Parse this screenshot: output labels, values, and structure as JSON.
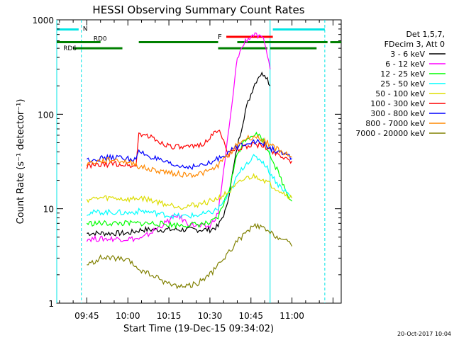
{
  "chart_data": {
    "type": "line",
    "title": "HESSI Observing Summary Count Rates",
    "xlabel": "Start Time (19-Dec-15 09:34:02)",
    "ylabel": "Count Rate (s⁻¹ detector⁻¹)",
    "yscale": "log",
    "xlim": [
      "09:34",
      "11:18"
    ],
    "ylim": [
      1,
      1000
    ],
    "x_ticks": [
      "09:45",
      "10:00",
      "10:15",
      "10:30",
      "10:45",
      "11:00"
    ],
    "y_ticks": [
      "1",
      "10",
      "100",
      "1000"
    ],
    "legend_position": "right",
    "legend_header": [
      "Det 1,5,7,",
      "FDecim 3, Att 0"
    ],
    "footer_date": "20-Oct-2017 10:04",
    "flags": {
      "cyan_label": "N",
      "rd0_label": "RD0",
      "rd6_label": "RD6",
      "flare_label": "F",
      "night_vlines": [
        "09:34",
        "09:43",
        "10:52",
        "11:12"
      ],
      "cyan_segments": [
        [
          "09:34",
          "09:42"
        ],
        [
          "10:53",
          "11:12"
        ]
      ],
      "rd0_segments": [
        [
          "09:34",
          "09:50"
        ],
        [
          "10:04",
          "10:33"
        ],
        [
          "10:40",
          "11:13"
        ],
        [
          "11:14",
          "11:18"
        ]
      ],
      "rd6_segments": [
        [
          "09:40",
          "09:58"
        ],
        [
          "10:33",
          "10:51"
        ],
        [
          "10:52",
          "11:09"
        ]
      ],
      "flare_segment": [
        "10:36",
        "10:53"
      ],
      "cyan_y": 790,
      "rd0_y": 580,
      "rd6_y": 500,
      "flare_y": 660
    },
    "series": [
      {
        "name": "3 - 6 keV",
        "color": "#000000",
        "x": [
          "09:45",
          "09:50",
          "09:55",
          "10:00",
          "10:05",
          "10:10",
          "10:15",
          "10:20",
          "10:25",
          "10:30",
          "10:33",
          "10:36",
          "10:40",
          "10:43",
          "10:46",
          "10:48",
          "10:50",
          "10:51",
          "10:52"
        ],
        "values": [
          5.5,
          5.5,
          5.5,
          5.5,
          6,
          6,
          6,
          6,
          6,
          6,
          6.5,
          10,
          45,
          110,
          200,
          260,
          270,
          240,
          200
        ]
      },
      {
        "name": "6 - 12 keV",
        "color": "#ff00ff",
        "x": [
          "09:45",
          "09:50",
          "09:55",
          "10:00",
          "10:05",
          "10:10",
          "10:15",
          "10:18",
          "10:22",
          "10:26",
          "10:30",
          "10:33",
          "10:35",
          "10:38",
          "10:40",
          "10:43",
          "10:46",
          "10:48",
          "10:50",
          "10:51",
          "10:52"
        ],
        "values": [
          4.8,
          4.8,
          4.8,
          4.8,
          4.8,
          6,
          7.5,
          8.5,
          7,
          6.5,
          6.5,
          9,
          25,
          120,
          400,
          600,
          700,
          650,
          600,
          420,
          300
        ]
      },
      {
        "name": "12 - 25 keV",
        "color": "#00ff00",
        "x": [
          "09:45",
          "09:50",
          "09:55",
          "10:00",
          "10:05",
          "10:10",
          "10:15",
          "10:20",
          "10:25",
          "10:30",
          "10:33",
          "10:37",
          "10:40",
          "10:43",
          "10:46",
          "10:48",
          "10:50",
          "10:52",
          "10:55",
          "10:58",
          "11:00"
        ],
        "values": [
          7,
          7,
          7,
          7,
          7,
          7,
          6.8,
          6.7,
          6.8,
          7,
          8,
          16,
          38,
          55,
          62,
          60,
          50,
          38,
          24,
          15,
          12
        ]
      },
      {
        "name": "25 - 50 keV",
        "color": "#00ffff",
        "x": [
          "09:45",
          "09:50",
          "09:55",
          "10:00",
          "10:05",
          "10:10",
          "10:15",
          "10:20",
          "10:25",
          "10:30",
          "10:33",
          "10:37",
          "10:40",
          "10:43",
          "10:46",
          "10:48",
          "10:50",
          "10:52",
          "10:55",
          "10:58",
          "11:00"
        ],
        "values": [
          9,
          9.2,
          9.2,
          9,
          9.5,
          9,
          8.5,
          8.3,
          8.5,
          9,
          10,
          14,
          22,
          30,
          35,
          34,
          30,
          24,
          18,
          15,
          13
        ]
      },
      {
        "name": "50 - 100 keV",
        "color": "#dddd00",
        "x": [
          "09:45",
          "09:50",
          "09:55",
          "10:00",
          "10:05",
          "10:10",
          "10:15",
          "10:20",
          "10:25",
          "10:30",
          "10:33",
          "10:37",
          "10:40",
          "10:43",
          "10:46",
          "10:48",
          "10:50",
          "10:52",
          "10:55",
          "10:58",
          "11:00"
        ],
        "values": [
          12.5,
          13,
          13,
          12.5,
          13,
          12,
          11,
          10.5,
          11,
          12,
          13,
          15,
          18,
          21,
          22,
          21.5,
          20,
          18,
          16,
          14,
          13
        ]
      },
      {
        "name": "100 - 300 keV",
        "color": "#ff0000",
        "x": [
          "09:45",
          "09:50",
          "09:55",
          "10:00",
          "10:03",
          "10:04",
          "10:08",
          "10:12",
          "10:16",
          "10:20",
          "10:24",
          "10:28",
          "10:31",
          "10:33",
          "10:37",
          "10:40",
          "10:43",
          "10:46",
          "10:48",
          "10:50",
          "10:52",
          "10:55",
          "10:58",
          "11:00"
        ],
        "values": [
          28,
          29,
          30,
          29,
          28,
          63,
          58,
          50,
          46,
          44,
          45,
          50,
          60,
          70,
          38,
          42,
          46,
          48,
          47,
          45,
          42,
          38,
          34,
          32
        ]
      },
      {
        "name": "300 - 800 keV",
        "color": "#0000ff",
        "x": [
          "09:45",
          "09:50",
          "09:55",
          "10:00",
          "10:03",
          "10:04",
          "10:08",
          "10:12",
          "10:16",
          "10:20",
          "10:24",
          "10:28",
          "10:31",
          "10:33",
          "10:37",
          "10:40",
          "10:43",
          "10:46",
          "10:48",
          "10:50",
          "10:52",
          "10:55",
          "10:58",
          "11:00"
        ],
        "values": [
          33,
          34,
          35,
          34,
          33,
          40,
          36,
          32,
          29,
          28,
          28,
          29,
          31,
          34,
          40,
          45,
          50,
          52,
          50,
          48,
          44,
          40,
          36,
          34
        ]
      },
      {
        "name": "800 - 7000 keV",
        "color": "#ff8800",
        "x": [
          "09:45",
          "09:50",
          "09:55",
          "10:00",
          "10:03",
          "10:04",
          "10:08",
          "10:12",
          "10:16",
          "10:20",
          "10:24",
          "10:28",
          "10:31",
          "10:33",
          "10:37",
          "10:40",
          "10:43",
          "10:46",
          "10:48",
          "10:50",
          "10:52",
          "10:55",
          "10:58",
          "11:00"
        ],
        "values": [
          30,
          32,
          33,
          31,
          30,
          28,
          26,
          25,
          24,
          23,
          23,
          24,
          26,
          29,
          38,
          48,
          55,
          58,
          56,
          52,
          48,
          42,
          38,
          35
        ]
      },
      {
        "name": "7000 - 20000 keV",
        "color": "#808000",
        "x": [
          "09:45",
          "09:50",
          "09:55",
          "10:00",
          "10:05",
          "10:10",
          "10:15",
          "10:20",
          "10:25",
          "10:30",
          "10:33",
          "10:37",
          "10:40",
          "10:43",
          "10:46",
          "10:48",
          "10:50",
          "10:52",
          "10:55",
          "10:58",
          "11:00"
        ],
        "values": [
          2.5,
          3,
          3,
          2.8,
          2.2,
          1.9,
          1.6,
          1.5,
          1.6,
          2,
          2.5,
          3.5,
          4.5,
          5.5,
          6.5,
          6.5,
          6,
          5.5,
          5,
          4.5,
          4
        ]
      }
    ]
  }
}
